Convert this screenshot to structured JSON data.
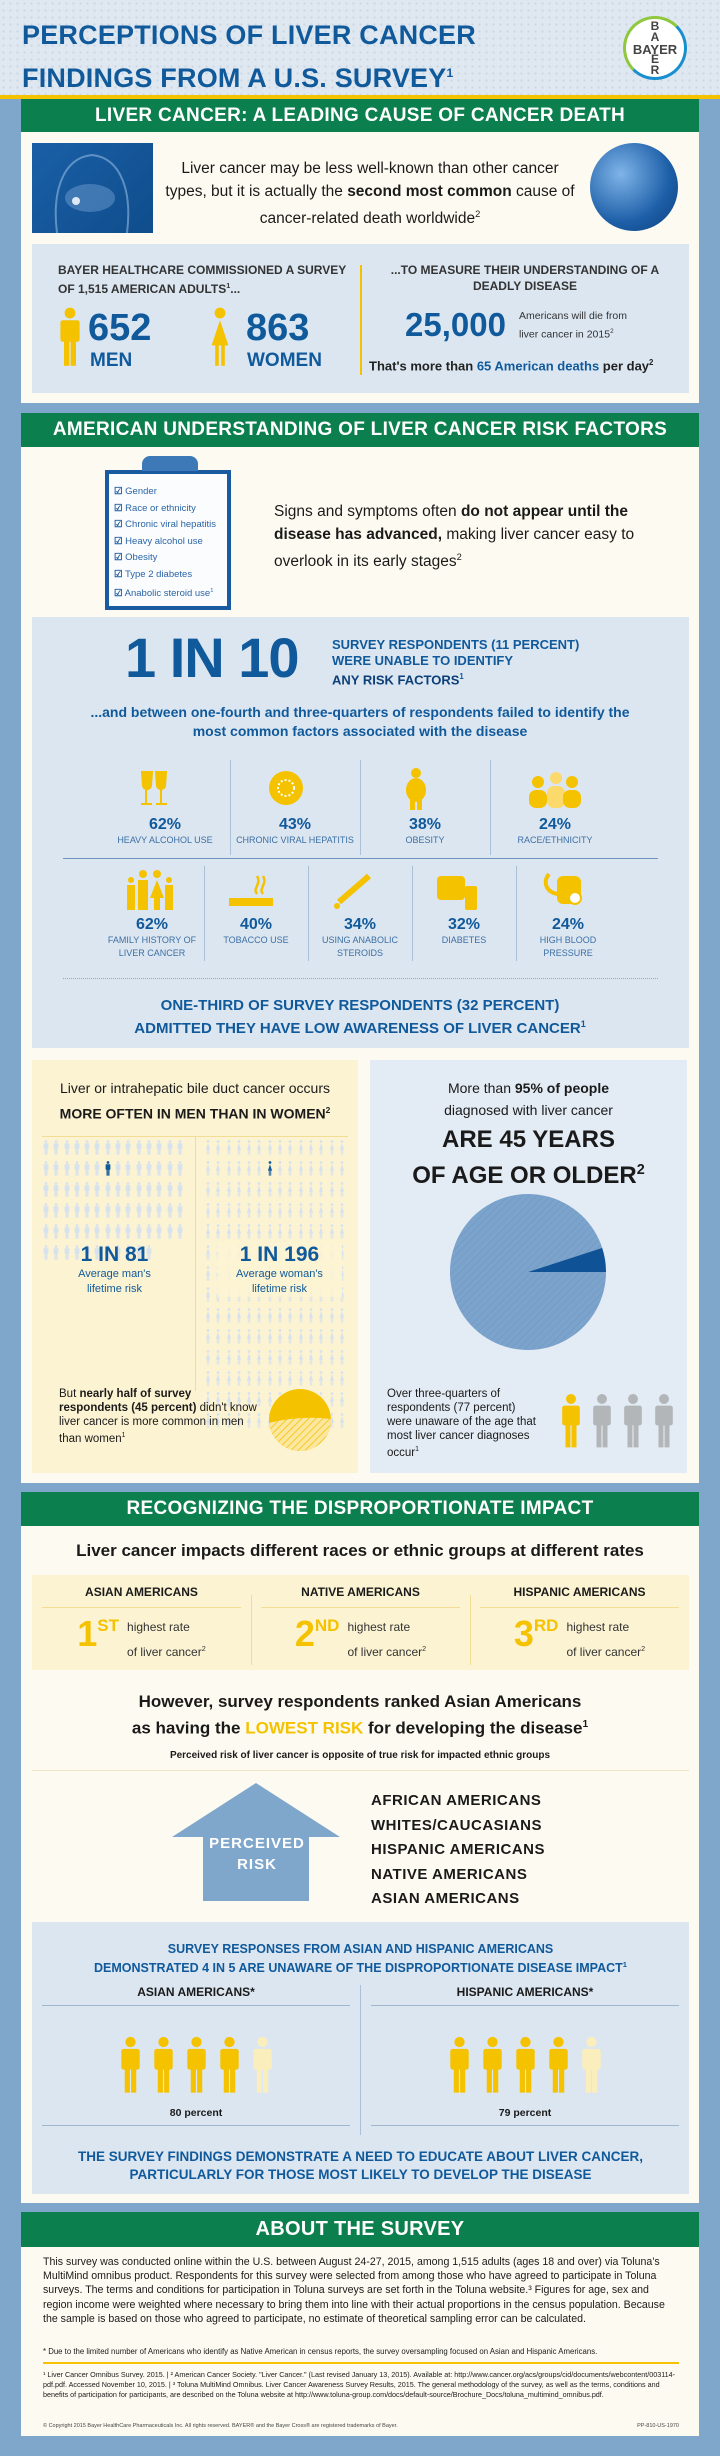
{
  "header": {
    "title_line1": "PERCEPTIONS OF LIVER CANCER",
    "title_line2": "FINDINGS FROM A U.S. SURVEY",
    "title_sup": "1",
    "logo_text": "BAYER"
  },
  "section1": {
    "banner": "LIVER CANCER: A LEADING CAUSE OF CANCER DEATH",
    "intro_pre": "Liver cancer may be less well-known than other cancer types, but it is actually the ",
    "intro_bold": "second most common",
    "intro_post": " cause of cancer-related death worldwide",
    "intro_sup": "2",
    "survey_heading": "BAYER HEALTHCARE COMMISSIONED A SURVEY OF 1,515 AMERICAN ADULTS",
    "survey_sup": "1",
    "survey_ellipsis": "...",
    "men_count": "652",
    "men_label": "MEN",
    "women_count": "863",
    "women_label": "WOMEN",
    "measure_heading": "...TO MEASURE THEIR UNDERSTANDING OF A DEADLY DISEASE",
    "deaths_count": "25,000",
    "deaths_text": "Americans will die from liver cancer in 2015",
    "deaths_sup": "2",
    "per_day_pre": "That's more than ",
    "per_day_highlight": "65 American deaths",
    "per_day_post": " per day",
    "per_day_sup": "2"
  },
  "section2": {
    "banner": "AMERICAN UNDERSTANDING OF LIVER CANCER RISK FACTORS",
    "checklist": [
      "Gender",
      "Race or ethnicity",
      "Chronic viral hepatitis",
      "Heavy alcohol use",
      "Obesity",
      "Type 2 diabetes",
      "Anabolic steroid use"
    ],
    "checklist_sup": "1",
    "signs_pre": "Signs and symptoms often ",
    "signs_bold": "do not appear until the disease has advanced,",
    "signs_post": " making liver cancer easy to overlook in its early stages",
    "signs_sup": "2",
    "one_in_ten": "1 IN 10",
    "one_in_ten_line1": "SURVEY RESPONDENTS (11 PERCENT)",
    "one_in_ten_line2": "WERE UNABLE TO IDENTIFY",
    "one_in_ten_line3": "ANY RISK FACTORS",
    "one_in_ten_sup": "1",
    "between_text": "...and between one-fourth and three-quarters of respondents failed to identify the most common factors associated with the disease",
    "factors_row1": [
      {
        "pct": "62%",
        "label": "HEAVY ALCOHOL USE",
        "icon": "wine-glasses-icon"
      },
      {
        "pct": "43%",
        "label": "CHRONIC VIRAL HEPATITIS",
        "icon": "virus-icon"
      },
      {
        "pct": "38%",
        "label": "OBESITY",
        "icon": "obese-person-icon"
      },
      {
        "pct": "24%",
        "label": "RACE/ETHNICITY",
        "icon": "people-group-icon"
      }
    ],
    "factors_row2": [
      {
        "pct": "62%",
        "label": "FAMILY HISTORY OF LIVER CANCER",
        "icon": "family-icon"
      },
      {
        "pct": "40%",
        "label": "TOBACCO USE",
        "icon": "cigarette-icon"
      },
      {
        "pct": "34%",
        "label": "USING ANABOLIC STEROIDS",
        "icon": "syringe-icon"
      },
      {
        "pct": "32%",
        "label": "DIABETES",
        "icon": "glucose-meter-icon"
      },
      {
        "pct": "24%",
        "label": "HIGH BLOOD PRESSURE",
        "icon": "blood-pressure-cuff-icon"
      }
    ],
    "one_third_line1": "ONE-THIRD OF SURVEY RESPONDENTS (32 PERCENT)",
    "one_third_line2": "ADMITTED THEY HAVE LOW AWARENESS OF LIVER CANCER",
    "one_third_sup": "1",
    "gender_intro": "Liver or intrahepatic bile duct cancer occurs",
    "gender_bold": "MORE OFTEN IN MEN THAN IN WOMEN",
    "gender_sup": "2",
    "men_risk": {
      "ratio": "1 IN 81",
      "label1": "Average man's",
      "label2": "lifetime risk",
      "total": 81
    },
    "women_risk": {
      "ratio": "1 IN 196",
      "label1": "Average woman's",
      "label2": "lifetime risk",
      "total": 196
    },
    "half_pre": "But ",
    "half_bold": "nearly half of survey respondents (45 percent)",
    "half_post": " didn't know liver cancer is more common in men than women",
    "half_sup": "1",
    "half_value": 45,
    "age_pre": "More than ",
    "age_bold": "95% of people",
    "age_line2": "diagnosed with liver cancer",
    "age_big1": "ARE 45 YEARS",
    "age_big2": "OF AGE OR OLDER",
    "age_sup": "2",
    "age_value": 95,
    "unaware_text": "Over three-quarters of respondents (77 percent) were unaware of the age that most liver cancer diagnoses occur",
    "unaware_sup": "1"
  },
  "section3": {
    "banner": "RECOGNIZING THE DISPROPORTIONATE IMPACT",
    "subtitle": "Liver cancer impacts different races or ethnic groups at different rates",
    "ranks": [
      {
        "group": "ASIAN AMERICANS",
        "num": "1",
        "suffix": "ST",
        "text1": "highest rate",
        "text2": "of liver cancer",
        "sup": "2"
      },
      {
        "group": "NATIVE AMERICANS",
        "num": "2",
        "suffix": "ND",
        "text1": "highest rate",
        "text2": "of liver cancer",
        "sup": "2"
      },
      {
        "group": "HISPANIC AMERICANS",
        "num": "3",
        "suffix": "RD",
        "text1": "highest rate",
        "text2": "of liver cancer",
        "sup": "2"
      }
    ],
    "however_line1": "However, survey respondents ranked Asian Americans",
    "however_pre": "as having the ",
    "however_highlight": "LOWEST RISK",
    "however_post": " for developing the disease",
    "however_sup": "1",
    "perceived_note": "Perceived risk of liver cancer is opposite of true risk for impacted ethnic groups",
    "arrow_label1": "PERCEIVED",
    "arrow_label2": "RISK",
    "perceived_list": [
      "AFRICAN AMERICANS",
      "WHITES/CAUCASIANS",
      "HISPANIC AMERICANS",
      "NATIVE AMERICANS",
      "ASIAN AMERICANS"
    ],
    "responses_line1": "SURVEY RESPONSES FROM ASIAN AND HISPANIC AMERICANS",
    "responses_line2": "DEMONSTRATED 4 IN 5 ARE UNAWARE OF THE DISPROPORTIONATE DISEASE IMPACT",
    "responses_sup": "1",
    "groups": [
      {
        "name": "ASIAN AMERICANS*",
        "value_text": "80 percent",
        "value": 80
      },
      {
        "name": "HISPANIC AMERICANS*",
        "value_text": "79 percent",
        "value": 79
      }
    ],
    "conclusion_line1": "THE SURVEY FINDINGS DEMONSTRATE A NEED TO EDUCATE ABOUT LIVER CANCER,",
    "conclusion_line2": "PARTICULARLY FOR THOSE MOST LIKELY TO DEVELOP THE DISEASE"
  },
  "about": {
    "banner": "ABOUT THE SURVEY",
    "body": "This survey was conducted online within the U.S. between August 24-27, 2015, among 1,515 adults (ages 18 and over) via Toluna's MultiMind omnibus product. Respondents for this survey were selected from among those who have agreed to participate in Toluna surveys. The terms and conditions for participation in Toluna surveys are set forth in the Toluna website.³ Figures for age, sex and region income were weighted where necessary to bring them into line with their actual proportions in the census population. Because the sample is based on those who agreed to participate, no estimate of theoretical sampling error can be calculated.",
    "note": "* Due to the limited number of Americans who identify as Native American in census reports, the survey oversampling focused on Asian and Hispanic Americans.",
    "references": "¹ Liver Cancer Omnibus Survey. 2015. | ² American Cancer Society. \"Liver Cancer.\" (Last revised January 13, 2015). Available at: http://www.cancer.org/acs/groups/cid/documents/webcontent/003114-pdf.pdf. Accessed November 10, 2015. | ³ Toluna MultiMind Omnibus. Liver Cancer Awareness Survey Results, 2015. The general methodology of the survey, as well as the terms, conditions and benefits of participation for participants, are described on the Toluna website at http://www.toluna-group.com/docs/default-source/Brochure_Docs/toluna_multimind_omnibus.pdf.",
    "copyright": "© Copyright 2015 Bayer HealthCare Pharmaceuticals Inc. All rights reserved. BAYER® and the Bayer Cross® are registered trademarks of Bayer.",
    "code": "PP-810-US-1970"
  },
  "colors": {
    "blue": "#10599b",
    "green": "#0c7f4e",
    "yellow": "#f5c200",
    "frame": "#7fa7cb"
  }
}
